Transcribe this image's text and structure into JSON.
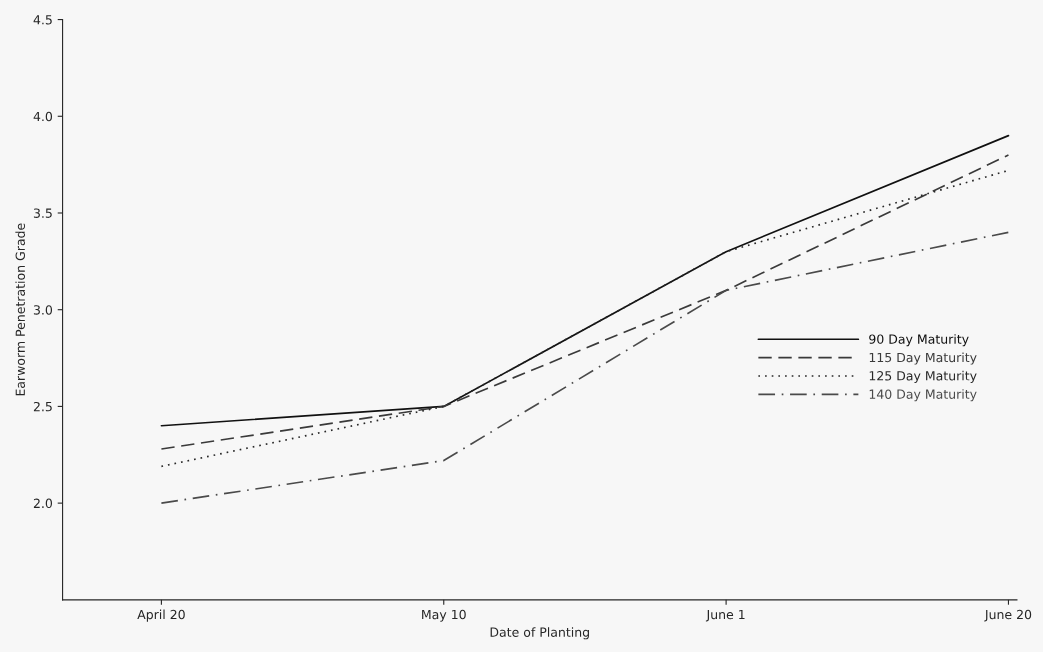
{
  "chart_data": {
    "type": "line",
    "xlabel": "Date of Planting",
    "ylabel": "Earworm Penetration Grade",
    "categories": [
      "April 20",
      "May 10",
      "June 1",
      "June 20"
    ],
    "ylim": [
      1.5,
      4.5
    ],
    "yticks": [
      {
        "value": 2.0,
        "label": "2.0"
      },
      {
        "value": 2.5,
        "label": "2.5"
      },
      {
        "value": 3.0,
        "label": "3.0"
      },
      {
        "value": 3.5,
        "label": "3.5"
      },
      {
        "value": 4.0,
        "label": "4.0"
      },
      {
        "value": 4.5,
        "label": "4.5"
      }
    ],
    "grid": false,
    "legend": "right",
    "series": [
      {
        "name": "90 Day Maturity",
        "color": "#111111",
        "line_style": "solid",
        "values": [
          2.4,
          2.5,
          3.3,
          3.9
        ]
      },
      {
        "name": "115 Day Maturity",
        "color": "#3a3a3a",
        "line_style": "dashed",
        "values": [
          2.28,
          2.5,
          3.1,
          3.8
        ]
      },
      {
        "name": "125 Day Maturity",
        "color": "#282828",
        "line_style": "dotted",
        "values": [
          2.19,
          2.5,
          3.3,
          3.72
        ]
      },
      {
        "name": "140 Day Maturity",
        "color": "#4a4a4a",
        "line_style": "dashdot",
        "values": [
          2.0,
          2.22,
          3.1,
          3.4
        ]
      }
    ]
  }
}
